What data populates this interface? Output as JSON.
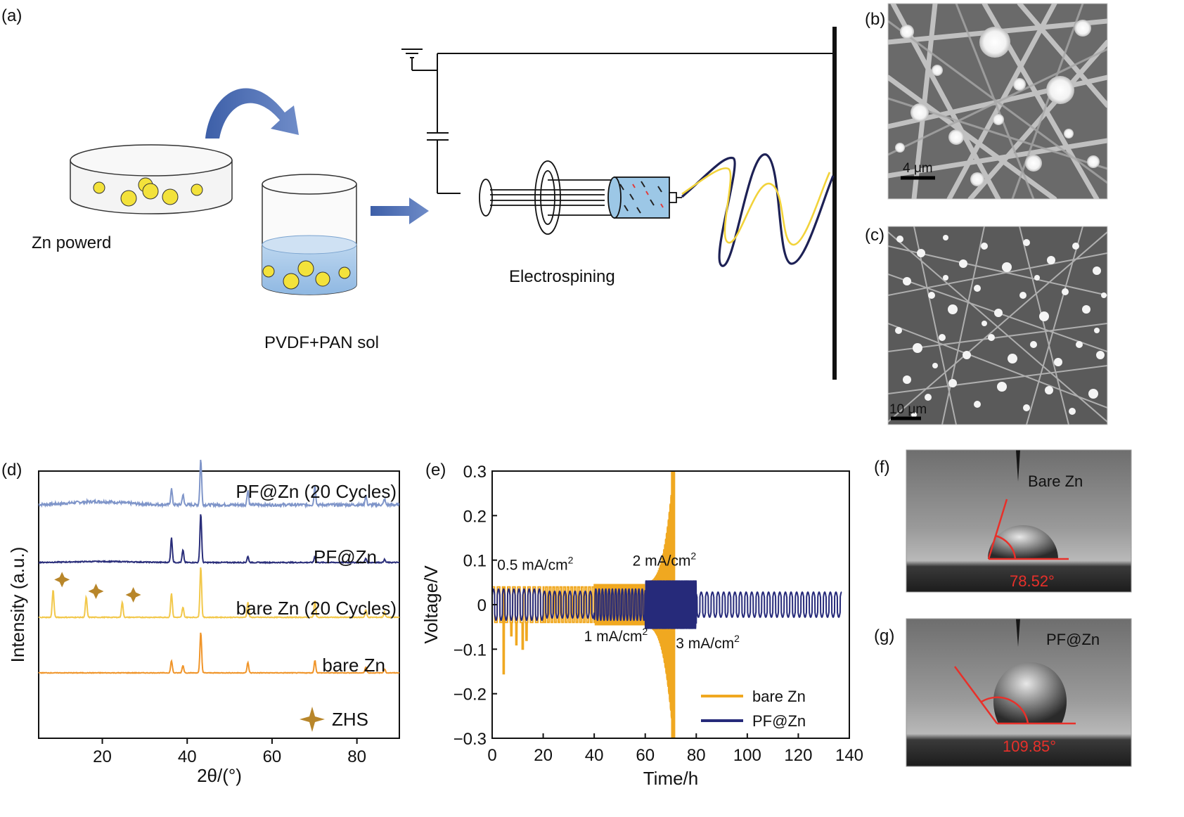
{
  "panels": {
    "a": "(a)",
    "b": "(b)",
    "c": "(c)",
    "d": "(d)",
    "e": "(e)",
    "f": "(f)",
    "g": "(g)"
  },
  "schematic": {
    "zn_label": "Zn powerd",
    "sol_label": "PVDF+PAN sol",
    "process_label": "Electrospining"
  },
  "sem": {
    "b_scale": "4 μm",
    "c_scale": "10 μm"
  },
  "contact": {
    "f_label": "Bare Zn",
    "f_angle": "78.52°",
    "g_label": "PF@Zn",
    "g_angle": "109.85°"
  },
  "colors": {
    "pfzn_cycled": "#7f95c9",
    "pfzn": "#2a2e7a",
    "bare_cycled": "#f2c84b",
    "bare": "#f0952a",
    "bare_line": "#f0a820",
    "pf_line": "#262a7a",
    "zhs": "#b8862a",
    "angle_red": "#e8302a"
  },
  "chart_data": [
    {
      "type": "line",
      "panel": "d",
      "xlabel": "2θ/(°)",
      "ylabel": "Intensity (a.u.)",
      "xlim": [
        5,
        90
      ],
      "xticks": [
        20,
        40,
        60,
        80
      ],
      "series": [
        {
          "name": "PF@Zn (20 Cycles)",
          "peaks": [
            [
              36.3,
              0.35
            ],
            [
              39.0,
              0.22
            ],
            [
              43.2,
              1.0
            ],
            [
              54.3,
              0.32
            ],
            [
              70.1,
              0.42
            ],
            [
              82.1,
              0.2
            ],
            [
              86.5,
              0.12
            ]
          ]
        },
        {
          "name": "PF@Zn",
          "peaks": [
            [
              36.3,
              0.5
            ],
            [
              39.0,
              0.25
            ],
            [
              43.2,
              1.0
            ],
            [
              54.3,
              0.12
            ],
            [
              70.1,
              0.12
            ],
            [
              82.1,
              0.08
            ],
            [
              86.5,
              0.06
            ]
          ]
        },
        {
          "name": "bare Zn (20 Cycles)",
          "peaks": [
            [
              8.4,
              0.55
            ],
            [
              16.2,
              0.4
            ],
            [
              24.7,
              0.3
            ],
            [
              36.3,
              0.48
            ],
            [
              39.0,
              0.2
            ],
            [
              43.2,
              1.0
            ],
            [
              54.3,
              0.3
            ],
            [
              70.1,
              0.32
            ],
            [
              82.1,
              0.15
            ],
            [
              86.5,
              0.1
            ]
          ]
        },
        {
          "name": "bare Zn",
          "peaks": [
            [
              36.3,
              0.3
            ],
            [
              39.0,
              0.18
            ],
            [
              43.2,
              1.0
            ],
            [
              54.3,
              0.25
            ],
            [
              70.1,
              0.3
            ],
            [
              82.1,
              0.15
            ],
            [
              86.5,
              0.1
            ]
          ]
        }
      ],
      "markers": {
        "name": "ZHS",
        "positions": [
          [
            10.5,
            0.55
          ],
          [
            18.5,
            0.32
          ],
          [
            27.3,
            0.25
          ]
        ]
      }
    },
    {
      "type": "line",
      "panel": "e",
      "xlabel": "Time/h",
      "ylabel": "Voltage/V",
      "xlim": [
        0,
        140
      ],
      "ylim": [
        -0.3,
        0.3
      ],
      "xticks": [
        0,
        20,
        40,
        60,
        80,
        100,
        120,
        140
      ],
      "yticks": [
        -0.3,
        -0.2,
        -0.1,
        0,
        0.1,
        0.2,
        0.3
      ],
      "xtick_labels": [
        "0",
        "20",
        "40",
        "60",
        "80",
        "100",
        "120",
        "140"
      ],
      "ytick_labels": [
        "−0.3",
        "−0.2",
        "−0.1",
        "0",
        "0.1",
        "0.2",
        "0.3"
      ],
      "series": [
        {
          "name": "bare Zn"
        },
        {
          "name": "PF@Zn"
        }
      ],
      "annotations": [
        {
          "text": "0.5 mA/cm",
          "sup": "2",
          "x": 2,
          "y": 0.078
        },
        {
          "text": "2 mA/cm",
          "sup": "2",
          "x": 55,
          "y": 0.088
        },
        {
          "text": "1 mA/cm",
          "sup": "2",
          "x": 36,
          "y": -0.082
        },
        {
          "text": "3 mA/cm",
          "sup": "2",
          "x": 72,
          "y": -0.098
        }
      ]
    }
  ]
}
